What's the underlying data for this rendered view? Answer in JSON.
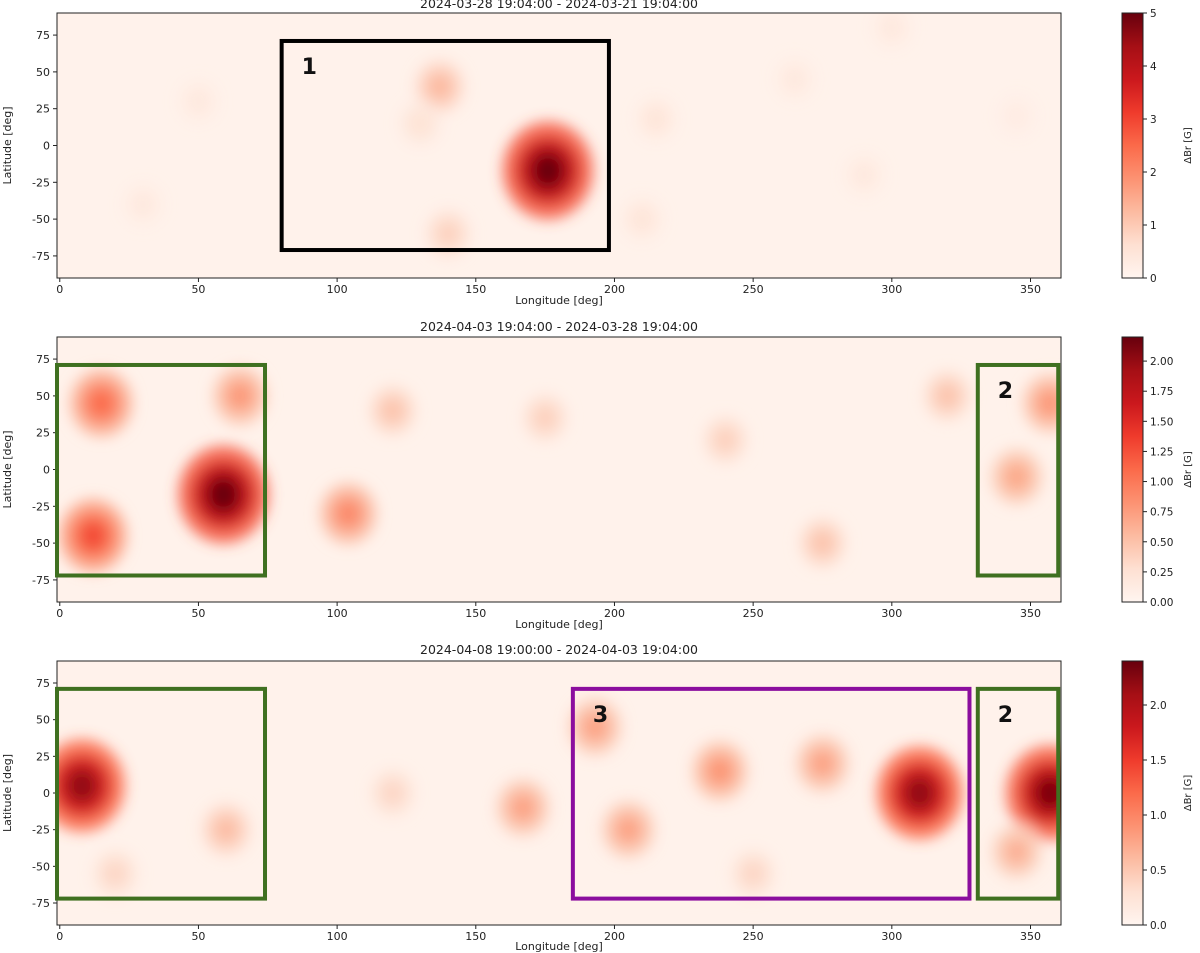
{
  "chart_data": [
    {
      "type": "heatmap",
      "title": "2024-03-28 19:04:00 - 2024-03-21 19:04:00",
      "xlabel": "Longitude [deg]",
      "ylabel": "Latitude [deg]",
      "xlim": [
        -1,
        361
      ],
      "ylim": [
        -90,
        90
      ],
      "xticks": [
        "0",
        "50",
        "100",
        "150",
        "200",
        "250",
        "300",
        "350"
      ],
      "yticks": [
        "75",
        "50",
        "25",
        "0",
        "-25",
        "-50",
        "-75"
      ],
      "colorbar": {
        "label": "ΔBr [G]",
        "min": 0,
        "max": 5,
        "ticks": [
          "0",
          "1",
          "2",
          "3",
          "4",
          "5"
        ],
        "colormap": "Reds"
      },
      "features": [
        {
          "lon": 176,
          "lat": -17,
          "value": 5.0
        },
        {
          "lon": 137,
          "lat": 40,
          "value": 1.3
        },
        {
          "lon": 130,
          "lat": 15,
          "value": 0.6
        },
        {
          "lon": 140,
          "lat": -60,
          "value": 0.9
        },
        {
          "lon": 215,
          "lat": 18,
          "value": 0.5
        },
        {
          "lon": 210,
          "lat": -50,
          "value": 0.5
        },
        {
          "lon": 265,
          "lat": 45,
          "value": 0.4
        },
        {
          "lon": 290,
          "lat": -20,
          "value": 0.4
        },
        {
          "lon": 50,
          "lat": 30,
          "value": 0.4
        },
        {
          "lon": 30,
          "lat": -40,
          "value": 0.4
        },
        {
          "lon": 300,
          "lat": 80,
          "value": 0.4
        },
        {
          "lon": 345,
          "lat": 20,
          "value": 0.3
        }
      ],
      "boxes": [
        {
          "label": "1",
          "color": "#000000",
          "lon": [
            80,
            198
          ],
          "lat": [
            -71,
            71
          ]
        }
      ]
    },
    {
      "type": "heatmap",
      "title": "2024-04-03 19:04:00 - 2024-03-28 19:04:00",
      "xlabel": "Longitude [deg]",
      "ylabel": "Latitude [deg]",
      "xlim": [
        -1,
        361
      ],
      "ylim": [
        -90,
        90
      ],
      "xticks": [
        "0",
        "50",
        "100",
        "150",
        "200",
        "250",
        "300",
        "350"
      ],
      "yticks": [
        "75",
        "50",
        "25",
        "0",
        "-25",
        "-50",
        "-75"
      ],
      "colorbar": {
        "label": "ΔBr [G]",
        "min": 0,
        "max": 2.2,
        "ticks": [
          "0.00",
          "0.25",
          "0.50",
          "0.75",
          "1.00",
          "1.25",
          "1.50",
          "1.75",
          "2.00"
        ],
        "colormap": "Reds"
      },
      "features": [
        {
          "lon": 59,
          "lat": -17,
          "value": 2.2
        },
        {
          "lon": 12,
          "lat": -45,
          "value": 1.3
        },
        {
          "lon": 15,
          "lat": 45,
          "value": 1.1
        },
        {
          "lon": 65,
          "lat": 50,
          "value": 0.8
        },
        {
          "lon": 104,
          "lat": -30,
          "value": 0.9
        },
        {
          "lon": 120,
          "lat": 40,
          "value": 0.5
        },
        {
          "lon": 175,
          "lat": 35,
          "value": 0.4
        },
        {
          "lon": 240,
          "lat": 20,
          "value": 0.4
        },
        {
          "lon": 275,
          "lat": -50,
          "value": 0.5
        },
        {
          "lon": 345,
          "lat": -5,
          "value": 0.7
        },
        {
          "lon": 357,
          "lat": 45,
          "value": 0.8
        },
        {
          "lon": 320,
          "lat": 50,
          "value": 0.5
        }
      ],
      "boxes": [
        {
          "label": "",
          "color": "#3f7020",
          "lon": [
            -1,
            74
          ],
          "lat": [
            -72,
            71
          ]
        },
        {
          "label": "2",
          "color": "#3f7020",
          "lon": [
            331,
            360
          ],
          "lat": [
            -72,
            71
          ]
        }
      ]
    },
    {
      "type": "heatmap",
      "title": "2024-04-08 19:00:00 - 2024-04-03 19:04:00",
      "xlabel": "Longitude [deg]",
      "ylabel": "Latitude [deg]",
      "xlim": [
        -1,
        361
      ],
      "ylim": [
        -90,
        90
      ],
      "xticks": [
        "0",
        "50",
        "100",
        "150",
        "200",
        "250",
        "300",
        "350"
      ],
      "yticks": [
        "75",
        "50",
        "25",
        "0",
        "-25",
        "-50",
        "-75"
      ],
      "colorbar": {
        "label": "ΔBr [G]",
        "min": 0,
        "max": 2.4,
        "ticks": [
          "0.0",
          "0.5",
          "1.0",
          "1.5",
          "2.0"
        ],
        "colormap": "Reds"
      },
      "features": [
        {
          "lon": 8,
          "lat": 5,
          "value": 2.2
        },
        {
          "lon": 310,
          "lat": 0,
          "value": 2.2
        },
        {
          "lon": 357,
          "lat": 0,
          "value": 2.3
        },
        {
          "lon": 193,
          "lat": 45,
          "value": 0.8
        },
        {
          "lon": 205,
          "lat": -25,
          "value": 0.8
        },
        {
          "lon": 238,
          "lat": 15,
          "value": 0.9
        },
        {
          "lon": 275,
          "lat": 20,
          "value": 0.8
        },
        {
          "lon": 167,
          "lat": -10,
          "value": 0.8
        },
        {
          "lon": 60,
          "lat": -25,
          "value": 0.6
        },
        {
          "lon": 20,
          "lat": -55,
          "value": 0.4
        },
        {
          "lon": 120,
          "lat": 0,
          "value": 0.4
        },
        {
          "lon": 250,
          "lat": -55,
          "value": 0.4
        },
        {
          "lon": 345,
          "lat": -40,
          "value": 0.7
        }
      ],
      "boxes": [
        {
          "label": "",
          "color": "#3f7020",
          "lon": [
            -1,
            74
          ],
          "lat": [
            -72,
            71
          ]
        },
        {
          "label": "3",
          "color": "#8b0e9e",
          "lon": [
            185,
            328
          ],
          "lat": [
            -72,
            71
          ]
        },
        {
          "label": "2",
          "color": "#3f7020",
          "lon": [
            331,
            360
          ],
          "lat": [
            -72,
            71
          ]
        }
      ]
    }
  ]
}
